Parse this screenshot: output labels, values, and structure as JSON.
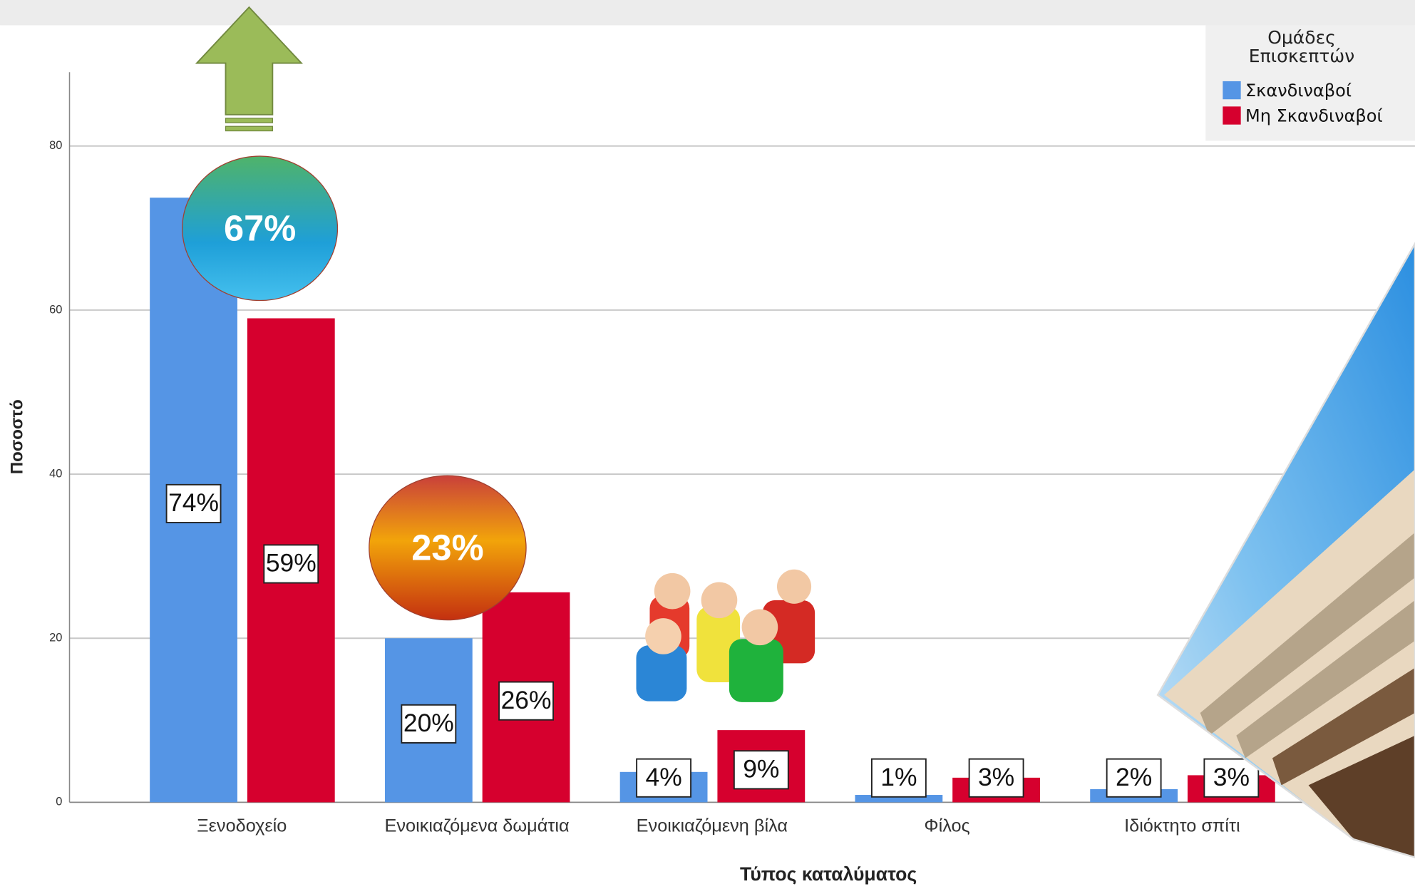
{
  "chart_data": {
    "type": "bar",
    "x_label": "Τύπος καταλύματος",
    "y_label": "Ποσοστό",
    "legend_title": "Ομάδες Επισκεπτών",
    "categories": [
      "Ξενοδοχείο",
      "Ενοικιαζόμενα δωμάτια",
      "Ενοικιαζόμενη βίλα",
      "Φίλος",
      "Ιδιόκτητο σπίτι"
    ],
    "series": [
      {
        "name": "Σκανδιναβοί",
        "color": "#5595e5",
        "values": [
          73.7,
          20,
          3.7,
          0.9,
          1.6
        ],
        "value_labels": [
          "74%",
          "20%",
          "4%",
          "1%",
          "2%"
        ]
      },
      {
        "name": "Μη Σκανδιναβοί",
        "color": "#d6002e",
        "values": [
          59,
          25.6,
          8.8,
          3,
          3.3
        ],
        "value_labels": [
          "59%",
          "26%",
          "9%",
          "3%",
          "3%"
        ]
      }
    ],
    "ylim": [
      0,
      89
    ],
    "yticks": [
      0,
      20,
      40,
      60,
      80
    ],
    "grid": true,
    "annotations": [
      "67%",
      "23%"
    ]
  }
}
